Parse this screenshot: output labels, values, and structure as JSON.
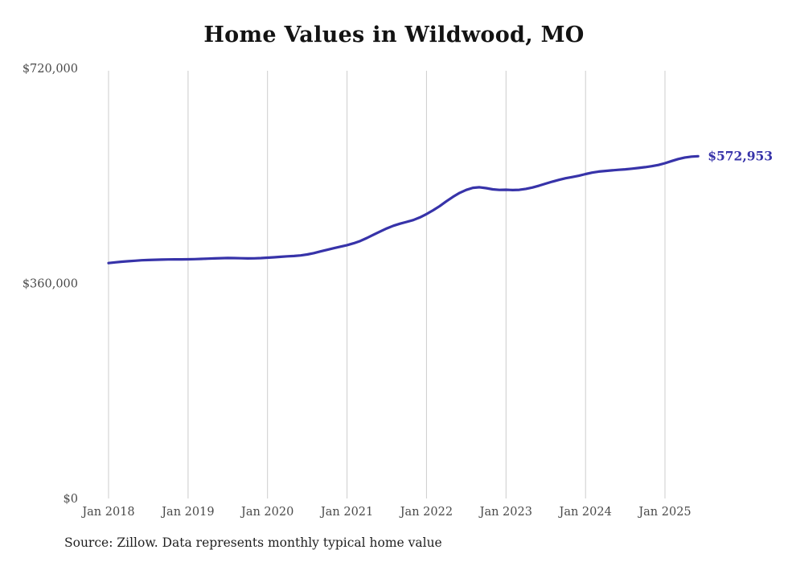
{
  "title": "Home Values in Wildwood, MO",
  "source_note": "Source: Zillow. Data represents monthly typical home value",
  "colors": {
    "line": "#3733a9",
    "grid": "#cccccc",
    "tick_text": "#4a4a4a",
    "title_text": "#131313"
  },
  "chart_data": {
    "type": "line",
    "title": "Home Values in Wildwood, MO",
    "xlabel": "",
    "ylabel": "",
    "ylim": [
      0,
      720000
    ],
    "grid": "vertical-only",
    "legend_position": "none",
    "yticks": [
      {
        "value": 0,
        "label": "$0"
      },
      {
        "value": 360000,
        "label": "$360,000"
      },
      {
        "value": 720000,
        "label": "$720,000"
      }
    ],
    "xticks": [
      "Jan 2018",
      "Jan 2019",
      "Jan 2020",
      "Jan 2021",
      "Jan 2022",
      "Jan 2023",
      "Jan 2024",
      "Jan 2025"
    ],
    "latest_label": "$572,953",
    "latest_value": 572953,
    "series": [
      {
        "name": "Monthly typical home value",
        "start_month": "2018-01",
        "frequency": "monthly",
        "values": [
          394000,
          395200,
          396300,
          397200,
          398000,
          398700,
          399200,
          399600,
          399900,
          400100,
          400200,
          400300,
          400400,
          400700,
          401000,
          401400,
          401900,
          402300,
          402500,
          402400,
          402100,
          401900,
          402000,
          402400,
          403000,
          403800,
          404600,
          405300,
          405900,
          406900,
          408500,
          410800,
          413500,
          416300,
          419000,
          421500,
          424000,
          427200,
          431000,
          436000,
          441500,
          447000,
          452000,
          456500,
          460000,
          463000,
          466000,
          470500,
          476000,
          482500,
          489500,
          497500,
          505000,
          511500,
          516500,
          520000,
          521000,
          519500,
          517500,
          516500,
          516800,
          516300,
          516600,
          518200,
          520600,
          523600,
          527000,
          530400,
          533400,
          536000,
          538000,
          540200,
          543000,
          545500,
          547200,
          548300,
          549200,
          550100,
          551000,
          552000,
          553200,
          554600,
          556200,
          558200,
          561200,
          564800,
          568200,
          570800,
          572200,
          572953
        ]
      }
    ]
  }
}
